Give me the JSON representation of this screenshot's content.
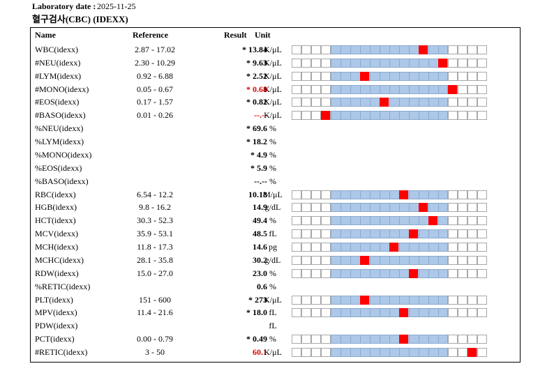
{
  "header": {
    "date_label": "Laboratory date :",
    "date_value": "2025-11-25",
    "section_title": "혈구검사(CBC) (IDEXX)"
  },
  "columns": {
    "name": "Name",
    "reference": "Reference",
    "result": "Result",
    "unit": "Unit"
  },
  "colors": {
    "range_fill": "#adc8e8",
    "marker": "#ff0000",
    "abnormal_text": "#e00000"
  },
  "rows": [
    {
      "name": "WBC(idexx)",
      "reference": "2.87 - 17.02",
      "result": "* 13.84",
      "unit": "K/μL",
      "red": false,
      "gauge": true,
      "marker_cell": 13
    },
    {
      "name": "#NEU(idexx)",
      "reference": "2.30 - 10.29",
      "result": "* 9.63",
      "unit": "K/μL",
      "red": false,
      "gauge": true,
      "marker_cell": 15
    },
    {
      "name": "#LYM(idexx)",
      "reference": "0.92 - 6.88",
      "result": "* 2.52",
      "unit": "K/μL",
      "red": false,
      "gauge": true,
      "marker_cell": 7
    },
    {
      "name": "#MONO(idexx)",
      "reference": "0.05 - 0.67",
      "result": "* 0.68",
      "unit": "K/μL",
      "red": true,
      "gauge": true,
      "marker_cell": 16
    },
    {
      "name": "#EOS(idexx)",
      "reference": "0.17 - 1.57",
      "result": "* 0.82",
      "unit": "K/μL",
      "red": false,
      "gauge": true,
      "marker_cell": 9
    },
    {
      "name": "#BASO(idexx)",
      "reference": "0.01 - 0.26",
      "result": "--.--",
      "unit": "K/μL",
      "red": true,
      "gauge": true,
      "marker_cell": 3
    },
    {
      "name": "%NEU(idexx)",
      "reference": "",
      "result": "* 69.6",
      "unit": "%",
      "red": false,
      "gauge": false,
      "marker_cell": null
    },
    {
      "name": "%LYM(idexx)",
      "reference": "",
      "result": "* 18.2",
      "unit": "%",
      "red": false,
      "gauge": false,
      "marker_cell": null
    },
    {
      "name": "%MONO(idexx)",
      "reference": "",
      "result": "* 4.9",
      "unit": "%",
      "red": false,
      "gauge": false,
      "marker_cell": null
    },
    {
      "name": "%EOS(idexx)",
      "reference": "",
      "result": "* 5.9",
      "unit": "%",
      "red": false,
      "gauge": false,
      "marker_cell": null
    },
    {
      "name": "%BASO(idexx)",
      "reference": "",
      "result": "--.--",
      "unit": "%",
      "red": false,
      "gauge": false,
      "marker_cell": null
    },
    {
      "name": "RBC(idexx)",
      "reference": "6.54 - 12.2",
      "result": "10.18",
      "unit": "M/μL",
      "red": false,
      "gauge": true,
      "marker_cell": 11
    },
    {
      "name": "HGB(idexx)",
      "reference": "9.8 - 16.2",
      "result": "14.9",
      "unit": "g/dL",
      "red": false,
      "gauge": true,
      "marker_cell": 13
    },
    {
      "name": "HCT(idexx)",
      "reference": "30.3 - 52.3",
      "result": "49.4",
      "unit": "%",
      "red": false,
      "gauge": true,
      "marker_cell": 14
    },
    {
      "name": "MCV(idexx)",
      "reference": "35.9 - 53.1",
      "result": "48.5",
      "unit": "fL",
      "red": false,
      "gauge": true,
      "marker_cell": 12
    },
    {
      "name": "MCH(idexx)",
      "reference": "11.8 - 17.3",
      "result": "14.6",
      "unit": "pg",
      "red": false,
      "gauge": true,
      "marker_cell": 10
    },
    {
      "name": "MCHC(idexx)",
      "reference": "28.1 - 35.8",
      "result": "30.2",
      "unit": "g/dL",
      "red": false,
      "gauge": true,
      "marker_cell": 7
    },
    {
      "name": "RDW(idexx)",
      "reference": "15.0 - 27.0",
      "result": "23.0",
      "unit": "%",
      "red": false,
      "gauge": true,
      "marker_cell": 12
    },
    {
      "name": "%RETIC(idexx)",
      "reference": "",
      "result": "0.6",
      "unit": "%",
      "red": false,
      "gauge": false,
      "marker_cell": null
    },
    {
      "name": "PLT(idexx)",
      "reference": "151 - 600",
      "result": "* 273",
      "unit": "K/μL",
      "red": false,
      "gauge": true,
      "marker_cell": 7
    },
    {
      "name": "MPV(idexx)",
      "reference": "11.4 - 21.6",
      "result": "* 18.0",
      "unit": "fL",
      "red": false,
      "gauge": true,
      "marker_cell": 11
    },
    {
      "name": "PDW(idexx)",
      "reference": "",
      "result": "",
      "unit": "fL",
      "red": false,
      "gauge": false,
      "marker_cell": null
    },
    {
      "name": "PCT(idexx)",
      "reference": "0.00 - 0.79",
      "result": "* 0.49",
      "unit": "%",
      "red": false,
      "gauge": true,
      "marker_cell": 11
    },
    {
      "name": "#RETIC(idexx)",
      "reference": "3 - 50",
      "result": "60.1",
      "unit": "K/μL",
      "red": true,
      "gauge": true,
      "marker_cell": 18
    }
  ]
}
